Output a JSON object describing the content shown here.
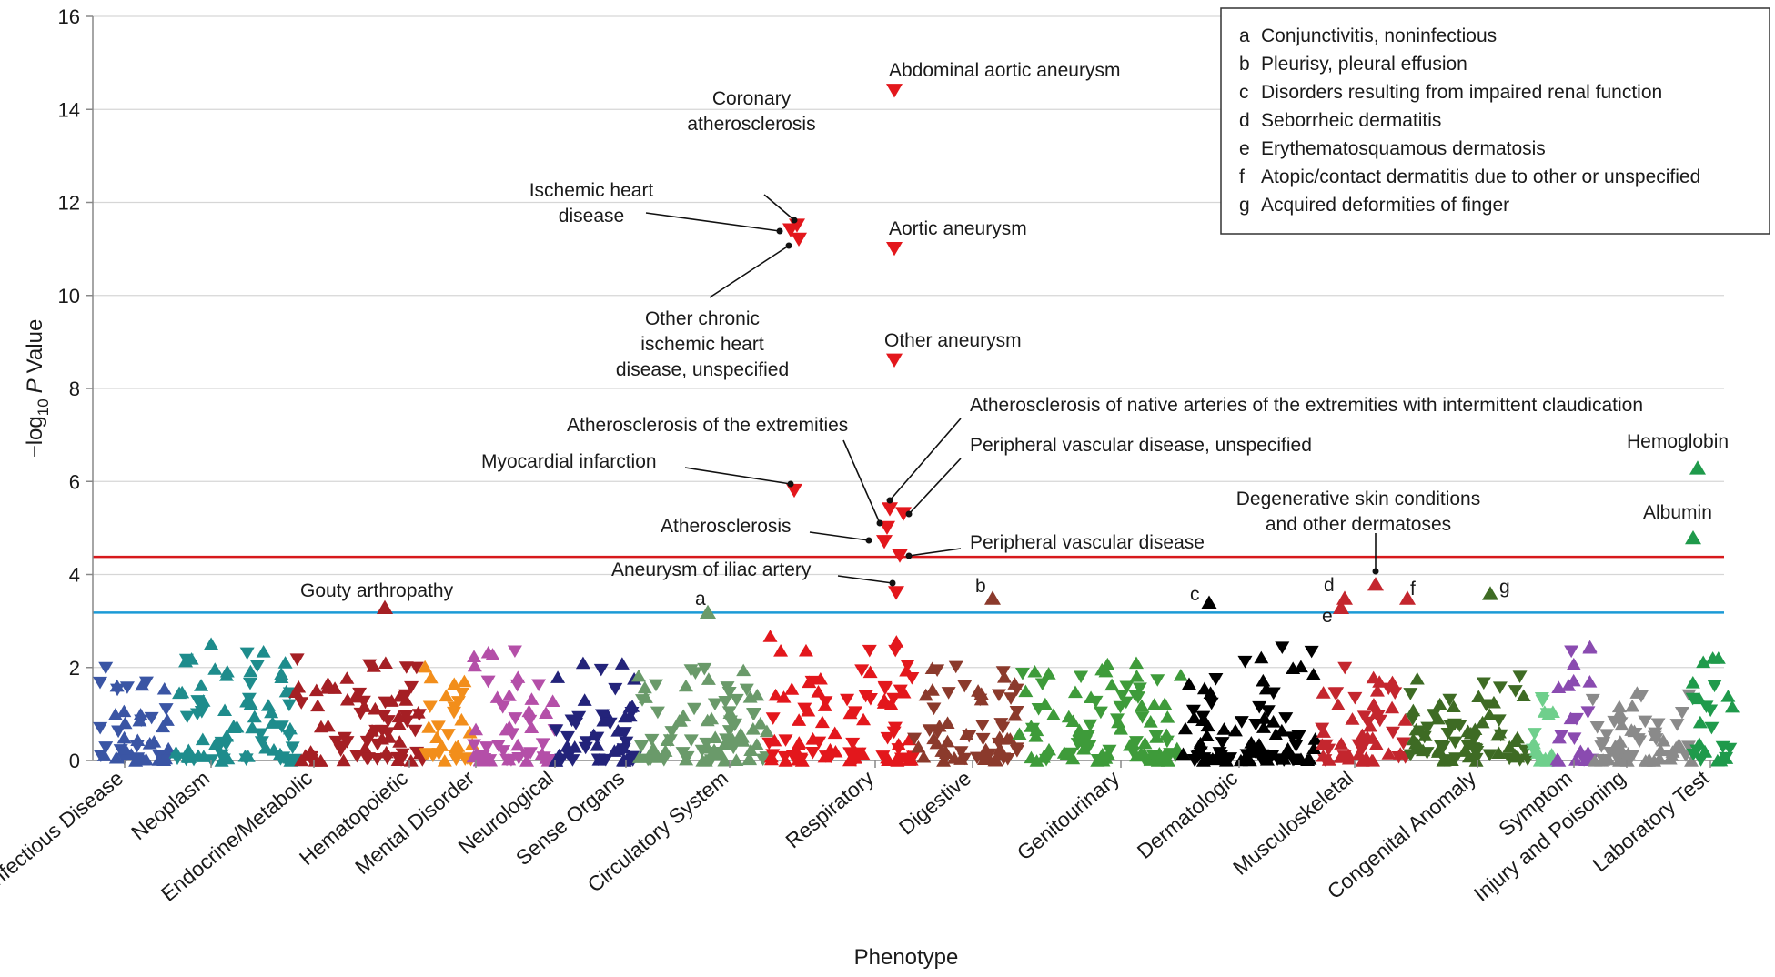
{
  "chart_data": {
    "type": "scatter",
    "xlabel": "Phenotype",
    "ylabel_prefix": "−log",
    "ylabel_sub": "10",
    "ylabel_p": "P",
    "ylabel_suffix": "Value",
    "ylim": [
      0,
      16
    ],
    "yticks": [
      "0",
      "2",
      "4",
      "6",
      "8",
      "10",
      "12",
      "14",
      "16"
    ],
    "grid": "horizontal",
    "thresholds": [
      {
        "value": 4.38,
        "color": "#d7191c"
      },
      {
        "value": 3.18,
        "color": "#1b9ad6"
      }
    ],
    "categories": [
      {
        "label": "Infectious Disease",
        "color": "#3a55a4"
      },
      {
        "label": "Neoplasm",
        "color": "#1e8c8c"
      },
      {
        "label": "Endocrine/Metabolic",
        "color": "#a51f24"
      },
      {
        "label": "Hematopoietic",
        "color": "#f28e1b"
      },
      {
        "label": "Mental Disorder",
        "color": "#b44fa8"
      },
      {
        "label": "Neurological",
        "color": "#23237a"
      },
      {
        "label": "Sense Organs",
        "color": "#6a9a6a"
      },
      {
        "label": "Circulatory System",
        "color": "#e3171c"
      },
      {
        "label": "Respiratory",
        "color": "#8b3a2c"
      },
      {
        "label": "Digestive",
        "color": "#3e9b3a"
      },
      {
        "label": "Genitourinary",
        "color": "#000000"
      },
      {
        "label": "Dermatologic",
        "color": "#c4262e"
      },
      {
        "label": "Musculoskeletal",
        "color": "#3e6b24"
      },
      {
        "label": "Congenital Anomaly",
        "color": "#6fcf8c"
      },
      {
        "label": "Symptom",
        "color": "#8a4bb0"
      },
      {
        "label": "Injury and Poisoning",
        "color": "#8a8a8a"
      },
      {
        "label": "Laboratory Test",
        "color": "#1f9a4b"
      }
    ],
    "highlighted_points": [
      {
        "label": "Abdominal aortic aneurysm",
        "category": "Circulatory System",
        "y": 14.4,
        "direction": "down"
      },
      {
        "label": "Coronary atherosclerosis",
        "category": "Circulatory System",
        "y": 11.5,
        "direction": "down"
      },
      {
        "label": "Ischemic heart disease",
        "category": "Circulatory System",
        "y": 11.4,
        "direction": "down"
      },
      {
        "label": "Other chronic ischemic heart disease, unspecified",
        "category": "Circulatory System",
        "y": 11.2,
        "direction": "down"
      },
      {
        "label": "Aortic aneurysm",
        "category": "Circulatory System",
        "y": 11.0,
        "direction": "down"
      },
      {
        "label": "Other aneurysm",
        "category": "Circulatory System",
        "y": 8.6,
        "direction": "down"
      },
      {
        "label": "Atherosclerosis of native arteries of the extremities with intermittent claudication",
        "category": "Circulatory System",
        "y": 5.4,
        "direction": "down"
      },
      {
        "label": "Peripheral vascular disease, unspecified",
        "category": "Circulatory System",
        "y": 5.3,
        "direction": "down"
      },
      {
        "label": "Atherosclerosis of the extremities",
        "category": "Circulatory System",
        "y": 5.0,
        "direction": "down"
      },
      {
        "label": "Myocardial infarction",
        "category": "Circulatory System",
        "y": 5.8,
        "direction": "down"
      },
      {
        "label": "Atherosclerosis",
        "category": "Circulatory System",
        "y": 4.7,
        "direction": "down"
      },
      {
        "label": "Peripheral vascular disease",
        "category": "Circulatory System",
        "y": 4.4,
        "direction": "down"
      },
      {
        "label": "Aneurysm of iliac artery",
        "category": "Circulatory System",
        "y": 3.6,
        "direction": "down"
      },
      {
        "label": "Gouty arthropathy",
        "category": "Endocrine/Metabolic",
        "y": 3.3,
        "direction": "up"
      },
      {
        "label": "Hemoglobin",
        "category": "Laboratory Test",
        "y": 6.3,
        "direction": "up"
      },
      {
        "label": "Albumin",
        "category": "Laboratory Test",
        "y": 4.8,
        "direction": "up"
      },
      {
        "label": "Degenerative skin conditions and other dermatoses",
        "category": "Dermatologic",
        "y": 3.8,
        "direction": "up"
      },
      {
        "label": "a",
        "category": "Sense Organs",
        "y": 3.2,
        "direction": "up"
      },
      {
        "label": "b",
        "category": "Respiratory",
        "y": 3.5,
        "direction": "up"
      },
      {
        "label": "c",
        "category": "Genitourinary",
        "y": 3.4,
        "direction": "up"
      },
      {
        "label": "d",
        "category": "Dermatologic",
        "y": 3.5,
        "direction": "up"
      },
      {
        "label": "e",
        "category": "Dermatologic",
        "y": 3.3,
        "direction": "up"
      },
      {
        "label": "f",
        "category": "Dermatologic",
        "y": 3.5,
        "direction": "up"
      },
      {
        "label": "g",
        "category": "Musculoskeletal",
        "y": 3.6,
        "direction": "up"
      }
    ],
    "legend": {
      "placement": "top-right",
      "entries": [
        {
          "key": "a",
          "text": "Conjunctivitis, noninfectious"
        },
        {
          "key": "b",
          "text": "Pleurisy, pleural effusion"
        },
        {
          "key": "c",
          "text": "Disorders resulting from impaired renal function"
        },
        {
          "key": "d",
          "text": "Seborrheic dermatitis"
        },
        {
          "key": "e",
          "text": "Erythematosquamous dermatosis"
        },
        {
          "key": "f",
          "text": "Atopic/contact dermatitis due to other or unspecified"
        },
        {
          "key": "g",
          "text": "Acquired deformities of finger"
        }
      ]
    },
    "annotations": [
      {
        "key": "abd",
        "lines": [
          "Abdominal aortic aneurysm"
        ]
      },
      {
        "key": "cor",
        "lines": [
          "Coronary",
          "atherosclerosis"
        ]
      },
      {
        "key": "ihd",
        "lines": [
          "Ischemic heart",
          "disease"
        ]
      },
      {
        "key": "ocihd",
        "lines": [
          "Other chronic",
          "ischemic heart",
          "disease, unspecified"
        ]
      },
      {
        "key": "aortic",
        "lines": [
          "Aortic aneurysm"
        ]
      },
      {
        "key": "other_an",
        "lines": [
          "Other aneurysm"
        ]
      },
      {
        "key": "native",
        "lines": [
          "Atherosclerosis of native arteries of the extremities with intermittent claudication"
        ]
      },
      {
        "key": "pvd_un",
        "lines": [
          "Peripheral vascular disease, unspecified"
        ]
      },
      {
        "key": "ath_ext",
        "lines": [
          "Atherosclerosis of the extremities"
        ]
      },
      {
        "key": "mi",
        "lines": [
          "Myocardial infarction"
        ]
      },
      {
        "key": "ath",
        "lines": [
          "Atherosclerosis"
        ]
      },
      {
        "key": "pvd",
        "lines": [
          "Peripheral vascular disease"
        ]
      },
      {
        "key": "iliac",
        "lines": [
          "Aneurysm of iliac artery"
        ]
      },
      {
        "key": "gout",
        "lines": [
          "Gouty arthropathy"
        ]
      },
      {
        "key": "hgb",
        "lines": [
          "Hemoglobin"
        ]
      },
      {
        "key": "alb",
        "lines": [
          "Albumin"
        ]
      },
      {
        "key": "degen",
        "lines": [
          "Degenerative skin conditions",
          "and other dermatoses"
        ]
      },
      {
        "key": "a",
        "lines": [
          "a"
        ]
      },
      {
        "key": "b",
        "lines": [
          "b"
        ]
      },
      {
        "key": "c",
        "lines": [
          "c"
        ]
      },
      {
        "key": "d",
        "lines": [
          "d"
        ]
      },
      {
        "key": "e",
        "lines": [
          "e"
        ]
      },
      {
        "key": "f",
        "lines": [
          "f"
        ]
      },
      {
        "key": "g",
        "lines": [
          "g"
        ]
      }
    ]
  }
}
